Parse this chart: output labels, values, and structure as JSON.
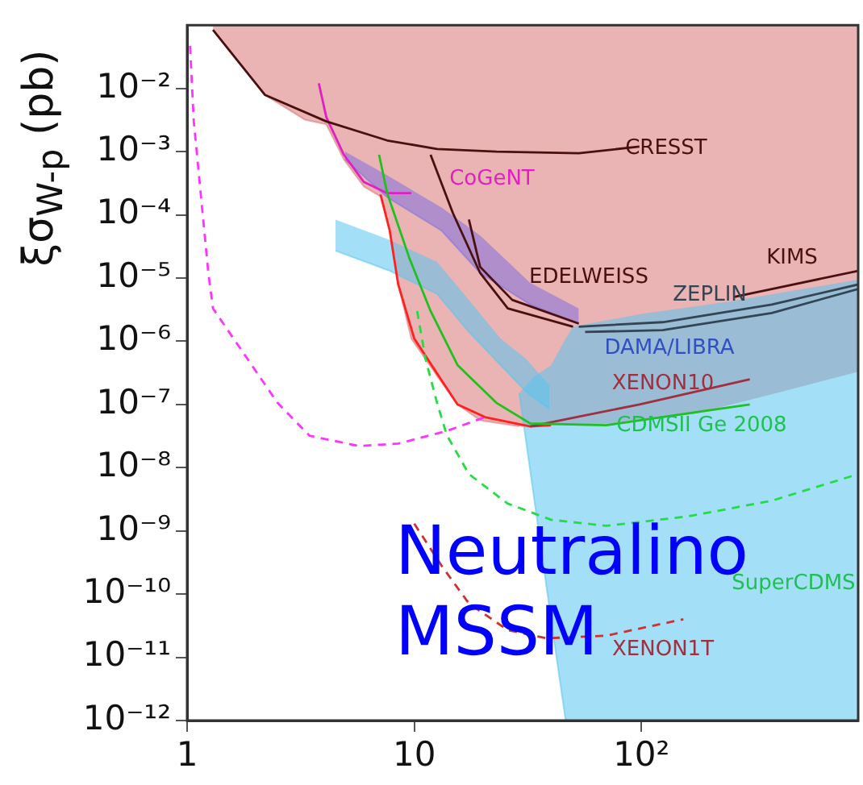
{
  "chart_data": {
    "type": "line",
    "ylabel": "ξσ$_{W-p}$ (pb)",
    "log": "xy",
    "grid": false,
    "legend": false,
    "marker": "none",
    "xlim": [
      1,
      900
    ],
    "xticks": [
      1,
      10,
      {
        "value": 100,
        "label": "10²"
      }
    ],
    "ylim": [
      1e-12,
      0.1
    ],
    "yticks": [
      {
        "value": 1e-12,
        "label": "10⁻¹²"
      },
      {
        "value": 1e-11,
        "label": "10⁻¹¹"
      },
      {
        "value": 1e-10,
        "label": "10⁻¹⁰"
      },
      {
        "value": 1e-09,
        "label": "10⁻⁹"
      },
      {
        "value": 1e-08,
        "label": "10⁻⁸"
      },
      {
        "value": 1e-07,
        "label": "10⁻⁷"
      },
      {
        "value": 1e-06,
        "label": "10⁻⁶"
      },
      {
        "value": 1e-05,
        "label": "10⁻⁵"
      },
      {
        "value": 0.0001,
        "label": "10⁻⁴"
      },
      {
        "value": 0.001,
        "label": "10⁻³"
      },
      {
        "value": 0.01,
        "label": "10⁻²"
      }
    ],
    "series": [
      {
        "color": "#d97777",
        "x": [
          1.3,
          2.2,
          3.3,
          4.1,
          4.9,
          6.0,
          7.2,
          7.8,
          8.5,
          9.7,
          13,
          15.5,
          19.5,
          29,
          76,
          171,
          390,
          900
        ],
        "values": [
          0.084,
          0.0079,
          0.0032,
          0.0027,
          0.00075,
          0.00028,
          0.00019,
          5.6e-05,
          7.9e-06,
          1.1e-06,
          2.4e-07,
          1e-07,
          5.6e-08,
          4.5e-08,
          null,
          null,
          null,
          null
        ],
        "lower": [
          0.084,
          0.0079,
          0.0032,
          0.0027,
          0.00075,
          0.00028,
          0.00019,
          5.6e-05,
          7.9e-06,
          1.1e-06,
          2.4e-07,
          1e-07,
          5.6e-08,
          4.5e-08,
          5e-08,
          7.1e-08,
          1.5e-07,
          3.3e-07
        ],
        "upper": [
          0.1,
          0.1,
          0.1,
          0.1,
          0.1,
          0.1,
          0.1,
          0.1,
          0.1,
          0.1,
          0.1,
          0.1,
          0.1,
          0.1,
          0.1,
          0.1,
          0.1,
          0.1
        ]
      },
      {
        "color": "#58c4f0",
        "x": [
          4.5,
          7.8,
          12.6,
          17.4,
          24,
          31,
          39.4
        ],
        "values": [
          2.7e-05,
          1.3e-05,
          5.6e-06,
          1.4e-06,
          4.2e-07,
          1.6e-07,
          8.4e-08
        ],
        "lower": [
          2.7e-05,
          1.3e-05,
          5.6e-06,
          1.4e-06,
          4.2e-07,
          1.6e-07,
          8.4e-08
        ],
        "upper": [
          8.4e-05,
          4e-05,
          1.8e-05,
          4.5e-06,
          1.1e-06,
          5.3e-07,
          2e-07
        ]
      },
      {
        "color": "#58c4f0",
        "x": [
          29,
          33.5,
          40,
          46.4,
          50,
          100,
          240,
          900
        ],
        "values": [
          1.5e-07,
          3.8e-09,
          4e-11,
          1e-12,
          1e-12,
          1e-12,
          1e-12,
          1e-12
        ],
        "lower": [
          1.5e-07,
          3.8e-09,
          4e-11,
          1e-12,
          1e-12,
          1e-12,
          1e-12,
          1e-12
        ],
        "upper": [
          1.5e-07,
          2.7e-07,
          4.2e-07,
          1.1e-06,
          1.7e-06,
          2.7e-06,
          4.2e-06,
          9.4e-06
        ]
      },
      {
        "color": "#8070e0",
        "x": [
          4.95,
          7.6,
          13.2,
          19.5,
          32.4,
          53
        ],
        "values": [
          0.00075,
          0.00019,
          5.6e-05,
          1.2e-05,
          3.8e-06,
          1.9e-06
        ],
        "lower": [
          0.00075,
          0.00019,
          5.6e-05,
          1.2e-05,
          3.8e-06,
          1.9e-06
        ],
        "upper": [
          0.001,
          0.00042,
          0.00013,
          4.7e-05,
          8.4e-06,
          3.3e-06
        ]
      },
      {
        "color": "#ff33ff",
        "line_style": "dashed",
        "x": [
          1.03,
          1.07,
          1.24,
          1.3,
          2.5,
          3.46,
          5.7,
          8.5,
          13.9,
          20.5
        ],
        "values": [
          0.047,
          0.003,
          1.2e-05,
          3.3e-06,
          1.06e-07,
          3.2e-08,
          2.2e-08,
          2.4e-08,
          3.8e-08,
          6.3e-08
        ]
      },
      {
        "color": "#e020c0",
        "x": [
          3.8,
          4.1,
          4.9,
          6.0,
          7.6,
          9.7
        ],
        "values": [
          0.012,
          0.0035,
          0.00089,
          0.00033,
          0.00022,
          0.00022
        ]
      },
      {
        "color": "#4a1010",
        "x": [
          1.3,
          2.2,
          4.1,
          7.6,
          12.6,
          23,
          53,
          98
        ],
        "values": [
          0.084,
          0.0079,
          0.003,
          0.0015,
          0.0011,
          0.001,
          0.00094,
          0.0012
        ]
      },
      {
        "color": "#4a1010",
        "x": [
          11.8,
          14.8,
          19.5,
          25.8,
          50
        ],
        "values": [
          0.00089,
          0.000106,
          1.2e-05,
          3.3e-06,
          1.7e-06
        ]
      },
      {
        "color": "#4a1010",
        "x": [
          17.4,
          19.5,
          27,
          53
        ],
        "values": [
          8.4e-05,
          1.5e-05,
          4.5e-06,
          1.9e-06
        ]
      },
      {
        "color": "#334455",
        "x": [
          53,
          124,
          375,
          900
        ],
        "values": [
          1.7e-06,
          2e-06,
          3.8e-06,
          7.9e-06
        ]
      },
      {
        "color": "#334455",
        "x": [
          56.5,
          124,
          375,
          900
        ],
        "values": [
          1.4e-06,
          1.5e-06,
          2.8e-06,
          6.7e-06
        ]
      },
      {
        "color": "#4a1010",
        "x": [
          254,
          375,
          900
        ],
        "values": [
          5e-06,
          6.7e-06,
          1.3e-05
        ]
      },
      {
        "color": "#ff2020",
        "x": [
          7.1,
          7.8,
          8.5,
          10,
          13.2,
          15.5,
          20.5,
          32.4,
          40
        ],
        "values": [
          0.00021,
          5.6e-05,
          7.9e-06,
          1.1e-06,
          2.4e-07,
          1e-07,
          6.3e-08,
          4.5e-08,
          4.7e-08
        ]
      },
      {
        "color": "#a03040",
        "x": [
          32.4,
          98,
          300
        ],
        "values": [
          4.5e-08,
          1e-07,
          2.5e-07
        ]
      },
      {
        "color": "#20c020",
        "x": [
          7.0,
          7.6,
          9.5,
          11.8,
          15.5,
          23,
          32.4,
          70,
          300
        ],
        "values": [
          0.00089,
          0.00022,
          2.1e-05,
          3e-06,
          4.2e-07,
          1.06e-07,
          5e-08,
          4.7e-08,
          1e-07
        ]
      },
      {
        "color": "#22dd44",
        "line_style": "dashed",
        "x": [
          10.3,
          11.2,
          12.6,
          13.9,
          17.4,
          25.8,
          40,
          70,
          161,
          375,
          900
        ],
        "values": [
          3e-06,
          5.3e-07,
          1.06e-07,
          3.3e-08,
          7.9e-09,
          2.7e-09,
          1.5e-09,
          1.2e-09,
          1.7e-09,
          3e-09,
          7.9e-09
        ]
      },
      {
        "color": "#d03030",
        "line_style": "dashed",
        "x": [
          10,
          13.2,
          17.4,
          25.8,
          38.2,
          70,
          153
        ],
        "values": [
          1.3e-09,
          2.8e-10,
          7.1e-11,
          2.7e-11,
          2e-11,
          2.2e-11,
          4e-11
        ]
      }
    ],
    "annotations": [
      "CRESST",
      "CoGeNT",
      "EDELWEISS",
      "ZEPLIN",
      "KIMS",
      "DAMA/LIBRA",
      "XENON10",
      "CDMSII Ge 2008",
      "SuperCDMS",
      "XENON1T",
      "Neutralino\nMSSM"
    ]
  }
}
